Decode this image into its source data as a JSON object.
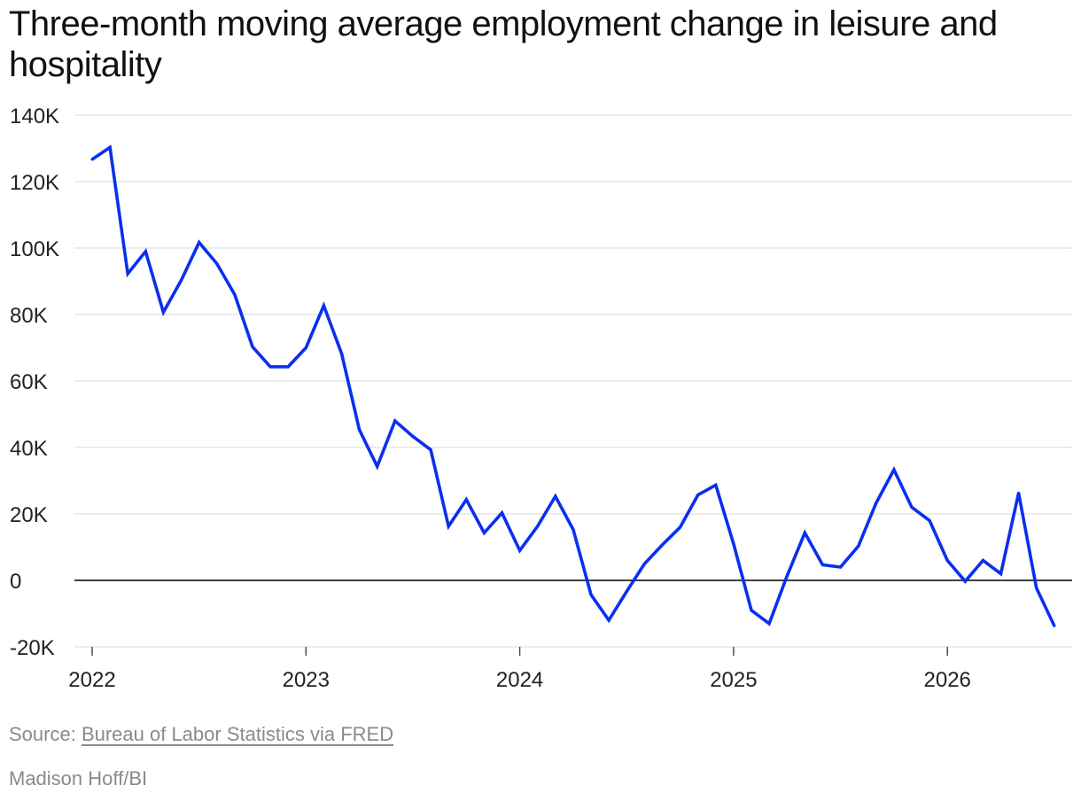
{
  "title": "Three-month moving average employment change in leisure and hospitality",
  "footer": {
    "source_prefix": "Source: ",
    "source_link": "Bureau of Labor Statistics via FRED",
    "credit": "Madison Hoff/BI"
  },
  "colors": {
    "line": "#0a2ff0",
    "zero_line": "#000000",
    "grid": "#e0e0e0"
  },
  "chart_data": {
    "type": "line",
    "title": "Three-month moving average employment change in leisure and hospitality",
    "xlabel": "",
    "ylabel": "",
    "x_ticks": [
      "2022",
      "2023",
      "2024",
      "2025",
      "2026"
    ],
    "y_ticks": [
      "-20K",
      "0",
      "20K",
      "40K",
      "60K",
      "80K",
      "100K",
      "120K",
      "140K"
    ],
    "ylim": [
      -20000,
      140000
    ],
    "xlim": [
      "2022-01",
      "2026-07"
    ],
    "grid": true,
    "series": [
      {
        "x": [
          "2022-01",
          "2022-02",
          "2022-03",
          "2022-04",
          "2022-05",
          "2022-06",
          "2022-07",
          "2022-08",
          "2022-09",
          "2022-10",
          "2022-11",
          "2022-12",
          "2023-01",
          "2023-02",
          "2023-03",
          "2023-04",
          "2023-05",
          "2023-06",
          "2023-07",
          "2023-08",
          "2023-09",
          "2023-10",
          "2023-11",
          "2023-12",
          "2024-01",
          "2024-02",
          "2024-03",
          "2024-04",
          "2024-05",
          "2024-06",
          "2024-07",
          "2024-08",
          "2024-09",
          "2024-10",
          "2024-11",
          "2024-12",
          "2025-01",
          "2025-02",
          "2025-03",
          "2025-04",
          "2025-05",
          "2025-06",
          "2025-07",
          "2025-08",
          "2025-09",
          "2025-10",
          "2025-11",
          "2025-12",
          "2026-01",
          "2026-02",
          "2026-03",
          "2026-04",
          "2026-05",
          "2026-06",
          "2026-07"
        ],
        "values": [
          126700,
          130300,
          92300,
          99000,
          80700,
          90300,
          101700,
          95300,
          86000,
          70300,
          64300,
          64300,
          70000,
          82700,
          68300,
          45300,
          34300,
          48000,
          43300,
          39300,
          16300,
          24300,
          14300,
          20300,
          9000,
          16300,
          25300,
          15300,
          -4300,
          -12000,
          -3300,
          5000,
          10700,
          16000,
          25700,
          28700,
          11000,
          -9000,
          -13000,
          1300,
          14300,
          4700,
          4000,
          10300,
          23300,
          33300,
          22000,
          18000,
          6000,
          -300,
          6000,
          2000,
          26300,
          -2300,
          -13700
        ]
      }
    ]
  }
}
